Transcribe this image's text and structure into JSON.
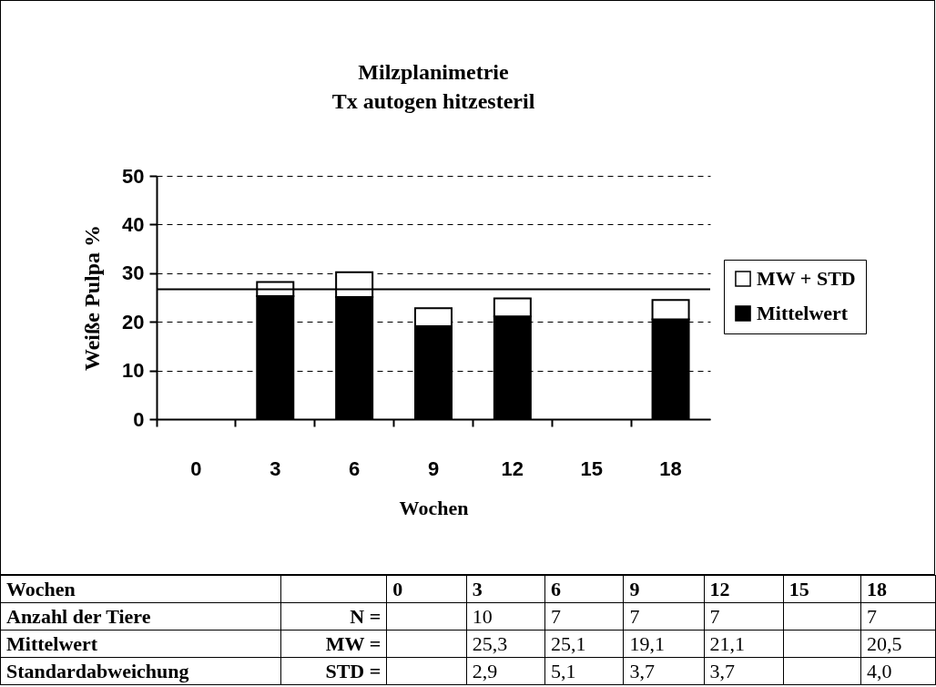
{
  "chart_data": {
    "type": "bar",
    "title": "Milzplanimetrie",
    "subtitle": "Tx autogen hitzesteril",
    "xlabel": "Wochen",
    "ylabel": "Weiße Pulpa %",
    "categories": [
      "0",
      "3",
      "6",
      "9",
      "12",
      "15",
      "18"
    ],
    "series": [
      {
        "name": "Mittelwert",
        "color": "#000000",
        "values": [
          null,
          25.3,
          25.1,
          19.1,
          21.1,
          null,
          20.5
        ]
      },
      {
        "name": "MW + STD",
        "color": "#ffffff",
        "values": [
          null,
          2.9,
          5.1,
          3.7,
          3.7,
          null,
          4.0
        ]
      }
    ],
    "stacked": true,
    "ylim": [
      0,
      50
    ],
    "yticks": [
      0,
      10,
      20,
      30,
      40,
      50
    ],
    "grid": "y",
    "legend": "right",
    "ref_lines": [
      {
        "axis": "y",
        "value": 26.7
      }
    ],
    "annotations": [
      "Wochen",
      "Anzahl der Tiere",
      "N =",
      "10",
      "7",
      "7",
      "7",
      "7",
      "MW =",
      "25,3",
      "25,1",
      "19,1",
      "21,1",
      "20,5",
      "Standardabweichung",
      "STD =",
      "2,9",
      "5,1",
      "3,7",
      "3,7",
      "4,0"
    ]
  }
}
